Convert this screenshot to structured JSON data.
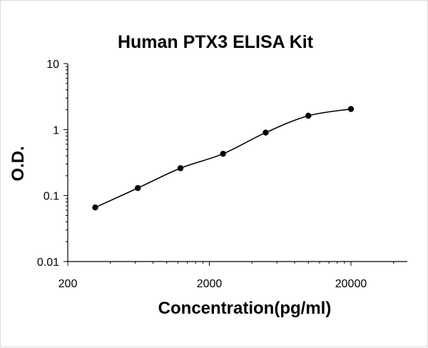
{
  "chart_data": {
    "type": "scatter",
    "title": "Human PTX3 ELISA Kit",
    "xlabel": "Concentration(pg/ml)",
    "ylabel": "O.D.",
    "x_scale": "log",
    "y_scale": "log",
    "xlim": [
      200,
      50000
    ],
    "ylim": [
      0.01,
      10
    ],
    "x_ticks": [
      {
        "value": 200,
        "label": "200"
      },
      {
        "value": 2000,
        "label": "2000"
      },
      {
        "value": 20000,
        "label": "20000"
      }
    ],
    "y_ticks": [
      {
        "value": 0.01,
        "label": "0.01"
      },
      {
        "value": 0.1,
        "label": "0.1"
      },
      {
        "value": 1,
        "label": "1"
      },
      {
        "value": 10,
        "label": "10"
      }
    ],
    "grid": false,
    "legend": "none",
    "series": [
      {
        "x": [
          312.5,
          625,
          1250,
          2500,
          5000,
          10000,
          20000
        ],
        "y": [
          0.066,
          0.13,
          0.26,
          0.43,
          0.9,
          1.62,
          2.05
        ],
        "marker": "circle",
        "fit_line": true
      }
    ],
    "colors": {
      "marker": "#000000",
      "line": "#000000",
      "axis": "#000000"
    }
  }
}
